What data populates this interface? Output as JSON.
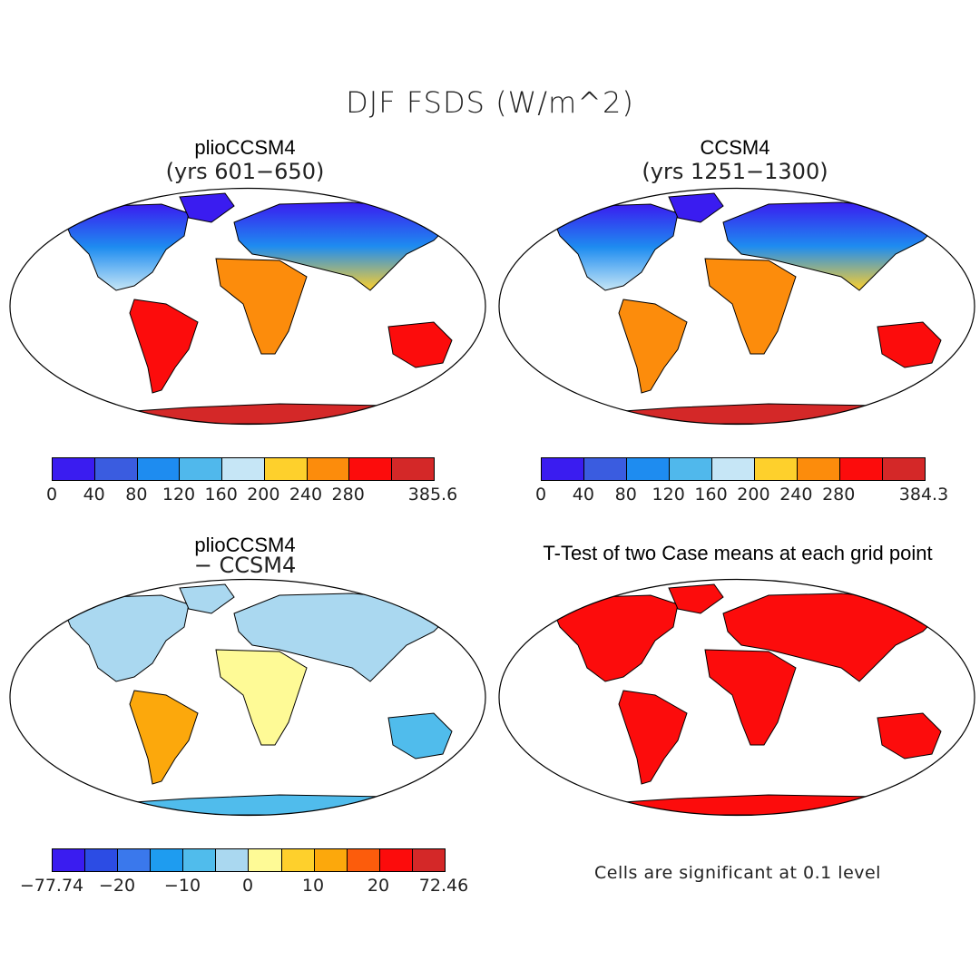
{
  "figure": {
    "title": "DJF FSDS (W/m^2)",
    "panels": [
      {
        "title": "plioCCSM4",
        "subtitle": "(yrs 601−650)",
        "colorbar": {
          "colors": [
            "#3a1cf0",
            "#3a5ce0",
            "#1e8cf0",
            "#50b8ec",
            "#c6e6f6",
            "#fed02c",
            "#fc8c0c",
            "#fc0c0c",
            "#d42828"
          ],
          "labels": [
            "0",
            "40",
            "80",
            "120",
            "160",
            "200",
            "240",
            "280",
            "385.6"
          ]
        }
      },
      {
        "title": "CCSM4",
        "subtitle": "(yrs 1251−1300)",
        "colorbar": {
          "colors": [
            "#3a1cf0",
            "#3a5ce0",
            "#1e8cf0",
            "#50b8ec",
            "#c6e6f6",
            "#fed02c",
            "#fc8c0c",
            "#fc0c0c",
            "#d42828"
          ],
          "labels": [
            "0",
            "40",
            "80",
            "120",
            "160",
            "200",
            "240",
            "280",
            "384.3"
          ]
        }
      },
      {
        "title": "plioCCSM4",
        "subtitle": "− CCSM4",
        "colorbar": {
          "colors": [
            "#3a1cf0",
            "#2c4ce4",
            "#3a78ec",
            "#1e9cf0",
            "#50bcec",
            "#aad8f0",
            "#fefa96",
            "#fed02c",
            "#fca80c",
            "#fc5c0c",
            "#fc0c0c",
            "#d42828"
          ],
          "labels": [
            "−77.74",
            "−20",
            "−10",
            "0",
            "10",
            "20",
            "72.46"
          ]
        }
      },
      {
        "title": "T-Test of two Case means at each grid point",
        "note": "Cells are significant at 0.1 level"
      }
    ]
  }
}
